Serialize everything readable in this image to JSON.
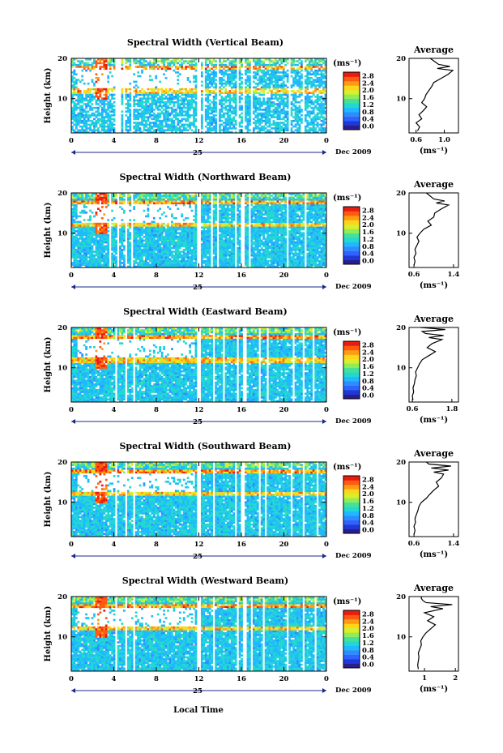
{
  "figure": {
    "xlabel": "Local Time",
    "date_label": "Dec 2009",
    "day_label": "25",
    "avg_title": "Average",
    "unit_label": "(ms⁻¹)",
    "ylabel": "Height (km)"
  },
  "colorbar": {
    "ticks": [
      "0.0",
      "0.4",
      "0.8",
      "1.2",
      "1.6",
      "2.0",
      "2.4",
      "2.8"
    ],
    "colors": [
      "#2b1d8f",
      "#1d3ad6",
      "#2f62ff",
      "#2e8cff",
      "#20b8ff",
      "#22d8d0",
      "#45e09a",
      "#8fec5a",
      "#d8ef2a",
      "#ffd51c",
      "#ff9a14",
      "#ff5a10",
      "#e81c10"
    ]
  },
  "chart_data": [
    {
      "type": "heatmap",
      "title": "Spectral Width (Vertical Beam)",
      "xlabel": "Local Time",
      "ylabel": "Height (km)",
      "x_ticks": [
        "0",
        "4",
        "8",
        "12",
        "16",
        "20",
        "0"
      ],
      "xlim": [
        0,
        24
      ],
      "y_ticks": [
        "10",
        "20"
      ],
      "ylim": [
        1.5,
        20
      ],
      "colorbar": {
        "label": "(ms⁻¹)",
        "range": [
          0,
          2.8
        ]
      },
      "gaps": [
        [
          4.2,
          4.6
        ],
        [
          4.9,
          5.1
        ],
        [
          5.7,
          5.9
        ],
        [
          11.9,
          12.1
        ],
        [
          12.3,
          12.5
        ],
        [
          13.6,
          13.8
        ],
        [
          15.6,
          15.8
        ],
        [
          16.2,
          16.4
        ],
        [
          16.8,
          17.1
        ],
        [
          20.4,
          20.6
        ],
        [
          21.7,
          21.9
        ]
      ],
      "average_profile": {
        "title": "Average",
        "xlabel": "(ms⁻¹)",
        "x_ticks": [
          "0.6",
          "1.0"
        ],
        "xlim": [
          0.5,
          1.2
        ],
        "ylim": [
          1.5,
          20
        ],
        "y_ticks": [
          "10",
          "20"
        ],
        "height_km": [
          2,
          3,
          4,
          5,
          6,
          7,
          8,
          9,
          10,
          11,
          12,
          13,
          14,
          15,
          16,
          17,
          17.5,
          18,
          18.5,
          19,
          19.5,
          20
        ],
        "value": [
          0.62,
          0.65,
          0.6,
          0.68,
          0.64,
          0.7,
          0.75,
          0.68,
          0.72,
          0.74,
          0.78,
          0.82,
          0.85,
          0.95,
          1.05,
          1.12,
          0.9,
          1.08,
          0.92,
          0.88,
          0.84,
          0.8
        ]
      }
    },
    {
      "type": "heatmap",
      "title": "Spectral Width (Northward Beam)",
      "xlabel": "Local Time",
      "ylabel": "Height (km)",
      "x_ticks": [
        "0",
        "4",
        "8",
        "12",
        "16",
        "20",
        "0"
      ],
      "xlim": [
        0,
        24
      ],
      "y_ticks": [
        "10",
        "20"
      ],
      "ylim": [
        1.5,
        20
      ],
      "colorbar": {
        "label": "(ms⁻¹)",
        "range": [
          0,
          2.8
        ]
      },
      "gaps": [
        [
          3.6,
          3.8
        ],
        [
          4.3,
          4.5
        ],
        [
          5.0,
          5.2
        ],
        [
          5.7,
          5.9
        ],
        [
          11.9,
          12.1
        ],
        [
          13.1,
          13.3
        ],
        [
          13.6,
          13.8
        ],
        [
          15.4,
          15.6
        ],
        [
          16.0,
          16.3
        ],
        [
          16.6,
          16.9
        ],
        [
          20.3,
          20.5
        ],
        [
          21.9,
          22.1
        ]
      ],
      "average_profile": {
        "title": "Average",
        "xlabel": "(ms⁻¹)",
        "x_ticks": [
          "0.6",
          "1.4"
        ],
        "xlim": [
          0.5,
          1.5
        ],
        "ylim": [
          1.5,
          20
        ],
        "y_ticks": [
          "10",
          "20"
        ],
        "height_km": [
          2,
          3,
          4,
          5,
          6,
          7,
          8,
          9,
          10,
          11,
          12,
          13,
          14,
          15,
          16,
          17,
          17.5,
          18,
          18.5,
          19,
          19.5,
          20
        ],
        "value": [
          0.6,
          0.62,
          0.6,
          0.64,
          0.62,
          0.66,
          0.7,
          0.66,
          0.72,
          0.8,
          0.95,
          0.88,
          1.0,
          1.02,
          1.15,
          1.3,
          1.05,
          1.22,
          1.0,
          0.95,
          0.9,
          0.85
        ]
      }
    },
    {
      "type": "heatmap",
      "title": "Spectral Width (Eastward Beam)",
      "xlabel": "Local Time",
      "ylabel": "Height (km)",
      "x_ticks": [
        "0",
        "4",
        "8",
        "12",
        "16",
        "20",
        "0"
      ],
      "xlim": [
        0,
        24
      ],
      "y_ticks": [
        "10",
        "20"
      ],
      "ylim": [
        1.5,
        20
      ],
      "colorbar": {
        "label": "(ms⁻¹)",
        "range": [
          0,
          2.8
        ]
      },
      "gaps": [
        [
          4.2,
          4.4
        ],
        [
          5.0,
          5.2
        ],
        [
          5.8,
          6.0
        ],
        [
          11.9,
          12.1
        ],
        [
          13.3,
          13.5
        ],
        [
          14.2,
          14.4
        ],
        [
          15.6,
          15.8
        ],
        [
          16.2,
          16.5
        ],
        [
          17.6,
          17.8
        ],
        [
          18.3,
          18.5
        ],
        [
          20.8,
          21.0
        ],
        [
          21.8,
          22.0
        ],
        [
          22.6,
          22.8
        ]
      ],
      "average_profile": {
        "title": "Average",
        "xlabel": "(ms⁻¹)",
        "x_ticks": [
          "0.6",
          "1.8"
        ],
        "xlim": [
          0.5,
          2.0
        ],
        "ylim": [
          1.5,
          20
        ],
        "y_ticks": [
          "10",
          "20"
        ],
        "height_km": [
          2,
          3,
          4,
          5,
          6,
          7,
          8,
          9,
          10,
          11,
          12,
          13,
          14,
          15,
          16,
          17,
          17.5,
          18,
          18.5,
          19,
          19.5,
          20
        ],
        "value": [
          0.62,
          0.6,
          0.64,
          0.62,
          0.66,
          0.68,
          0.72,
          0.7,
          0.76,
          0.82,
          0.9,
          1.1,
          1.3,
          1.05,
          1.2,
          1.5,
          1.1,
          1.55,
          1.0,
          0.9,
          1.6,
          0.85
        ]
      }
    },
    {
      "type": "heatmap",
      "title": "Spectral Width (Southward Beam)",
      "xlabel": "Local Time",
      "ylabel": "Height (km)",
      "x_ticks": [
        "0",
        "4",
        "8",
        "12",
        "16",
        "20",
        "0"
      ],
      "xlim": [
        0,
        24
      ],
      "y_ticks": [
        "10",
        "20"
      ],
      "ylim": [
        1.5,
        20
      ],
      "colorbar": {
        "label": "(ms⁻¹)",
        "range": [
          0,
          2.8
        ]
      },
      "gaps": [
        [
          4.2,
          4.4
        ],
        [
          5.1,
          5.3
        ],
        [
          5.8,
          6.0
        ],
        [
          11.9,
          12.1
        ],
        [
          13.3,
          13.5
        ],
        [
          15.4,
          15.6
        ],
        [
          16.0,
          16.3
        ],
        [
          17.6,
          17.8
        ],
        [
          18.2,
          18.4
        ],
        [
          20.6,
          20.8
        ],
        [
          21.8,
          22.0
        ],
        [
          23.0,
          23.2
        ]
      ],
      "average_profile": {
        "title": "Average",
        "xlabel": "(ms⁻¹)",
        "x_ticks": [
          "0.6",
          "1.4"
        ],
        "xlim": [
          0.5,
          1.5
        ],
        "ylim": [
          1.5,
          20
        ],
        "y_ticks": [
          "10",
          "20"
        ],
        "height_km": [
          2,
          3,
          4,
          5,
          6,
          7,
          8,
          9,
          10,
          11,
          12,
          13,
          14,
          15,
          16,
          17,
          17.5,
          18,
          18.5,
          19,
          19.5,
          20
        ],
        "value": [
          0.6,
          0.62,
          0.6,
          0.63,
          0.62,
          0.65,
          0.68,
          0.7,
          0.75,
          0.85,
          0.92,
          1.0,
          1.1,
          1.05,
          1.15,
          1.2,
          1.0,
          1.3,
          0.95,
          1.35,
          0.9,
          0.85
        ]
      }
    },
    {
      "type": "heatmap",
      "title": "Spectral Width (Westward Beam)",
      "xlabel": "Local Time",
      "ylabel": "Height (km)",
      "x_ticks": [
        "0",
        "4",
        "8",
        "12",
        "16",
        "20",
        "0"
      ],
      "xlim": [
        0,
        24
      ],
      "y_ticks": [
        "10",
        "20"
      ],
      "ylim": [
        1.5,
        20
      ],
      "colorbar": {
        "label": "(ms⁻¹)",
        "range": [
          0,
          2.8
        ]
      },
      "gaps": [
        [
          4.2,
          4.4
        ],
        [
          5.0,
          5.2
        ],
        [
          5.8,
          6.0
        ],
        [
          11.9,
          12.1
        ],
        [
          13.3,
          13.5
        ],
        [
          15.5,
          15.7
        ],
        [
          16.2,
          16.5
        ],
        [
          16.9,
          17.1
        ],
        [
          18.0,
          18.2
        ],
        [
          20.2,
          20.4
        ],
        [
          21.8,
          22.0
        ],
        [
          22.8,
          23.0
        ]
      ],
      "average_profile": {
        "title": "Average",
        "xlabel": "(ms⁻¹)",
        "x_ticks": [
          "1",
          "2"
        ],
        "xlim": [
          0.5,
          2.1
        ],
        "ylim": [
          1.5,
          20
        ],
        "y_ticks": [
          "10",
          "20"
        ],
        "height_km": [
          2,
          3,
          4,
          5,
          6,
          7,
          8,
          9,
          10,
          11,
          12,
          13,
          14,
          15,
          16,
          17,
          17.5,
          18,
          18.5,
          19,
          19.5,
          20
        ],
        "value": [
          0.8,
          0.78,
          0.8,
          0.82,
          0.8,
          0.85,
          0.9,
          0.88,
          0.95,
          1.05,
          1.2,
          1.35,
          1.1,
          1.3,
          1.0,
          1.6,
          1.2,
          1.9,
          1.05,
          0.95,
          0.9,
          0.9
        ]
      }
    }
  ]
}
